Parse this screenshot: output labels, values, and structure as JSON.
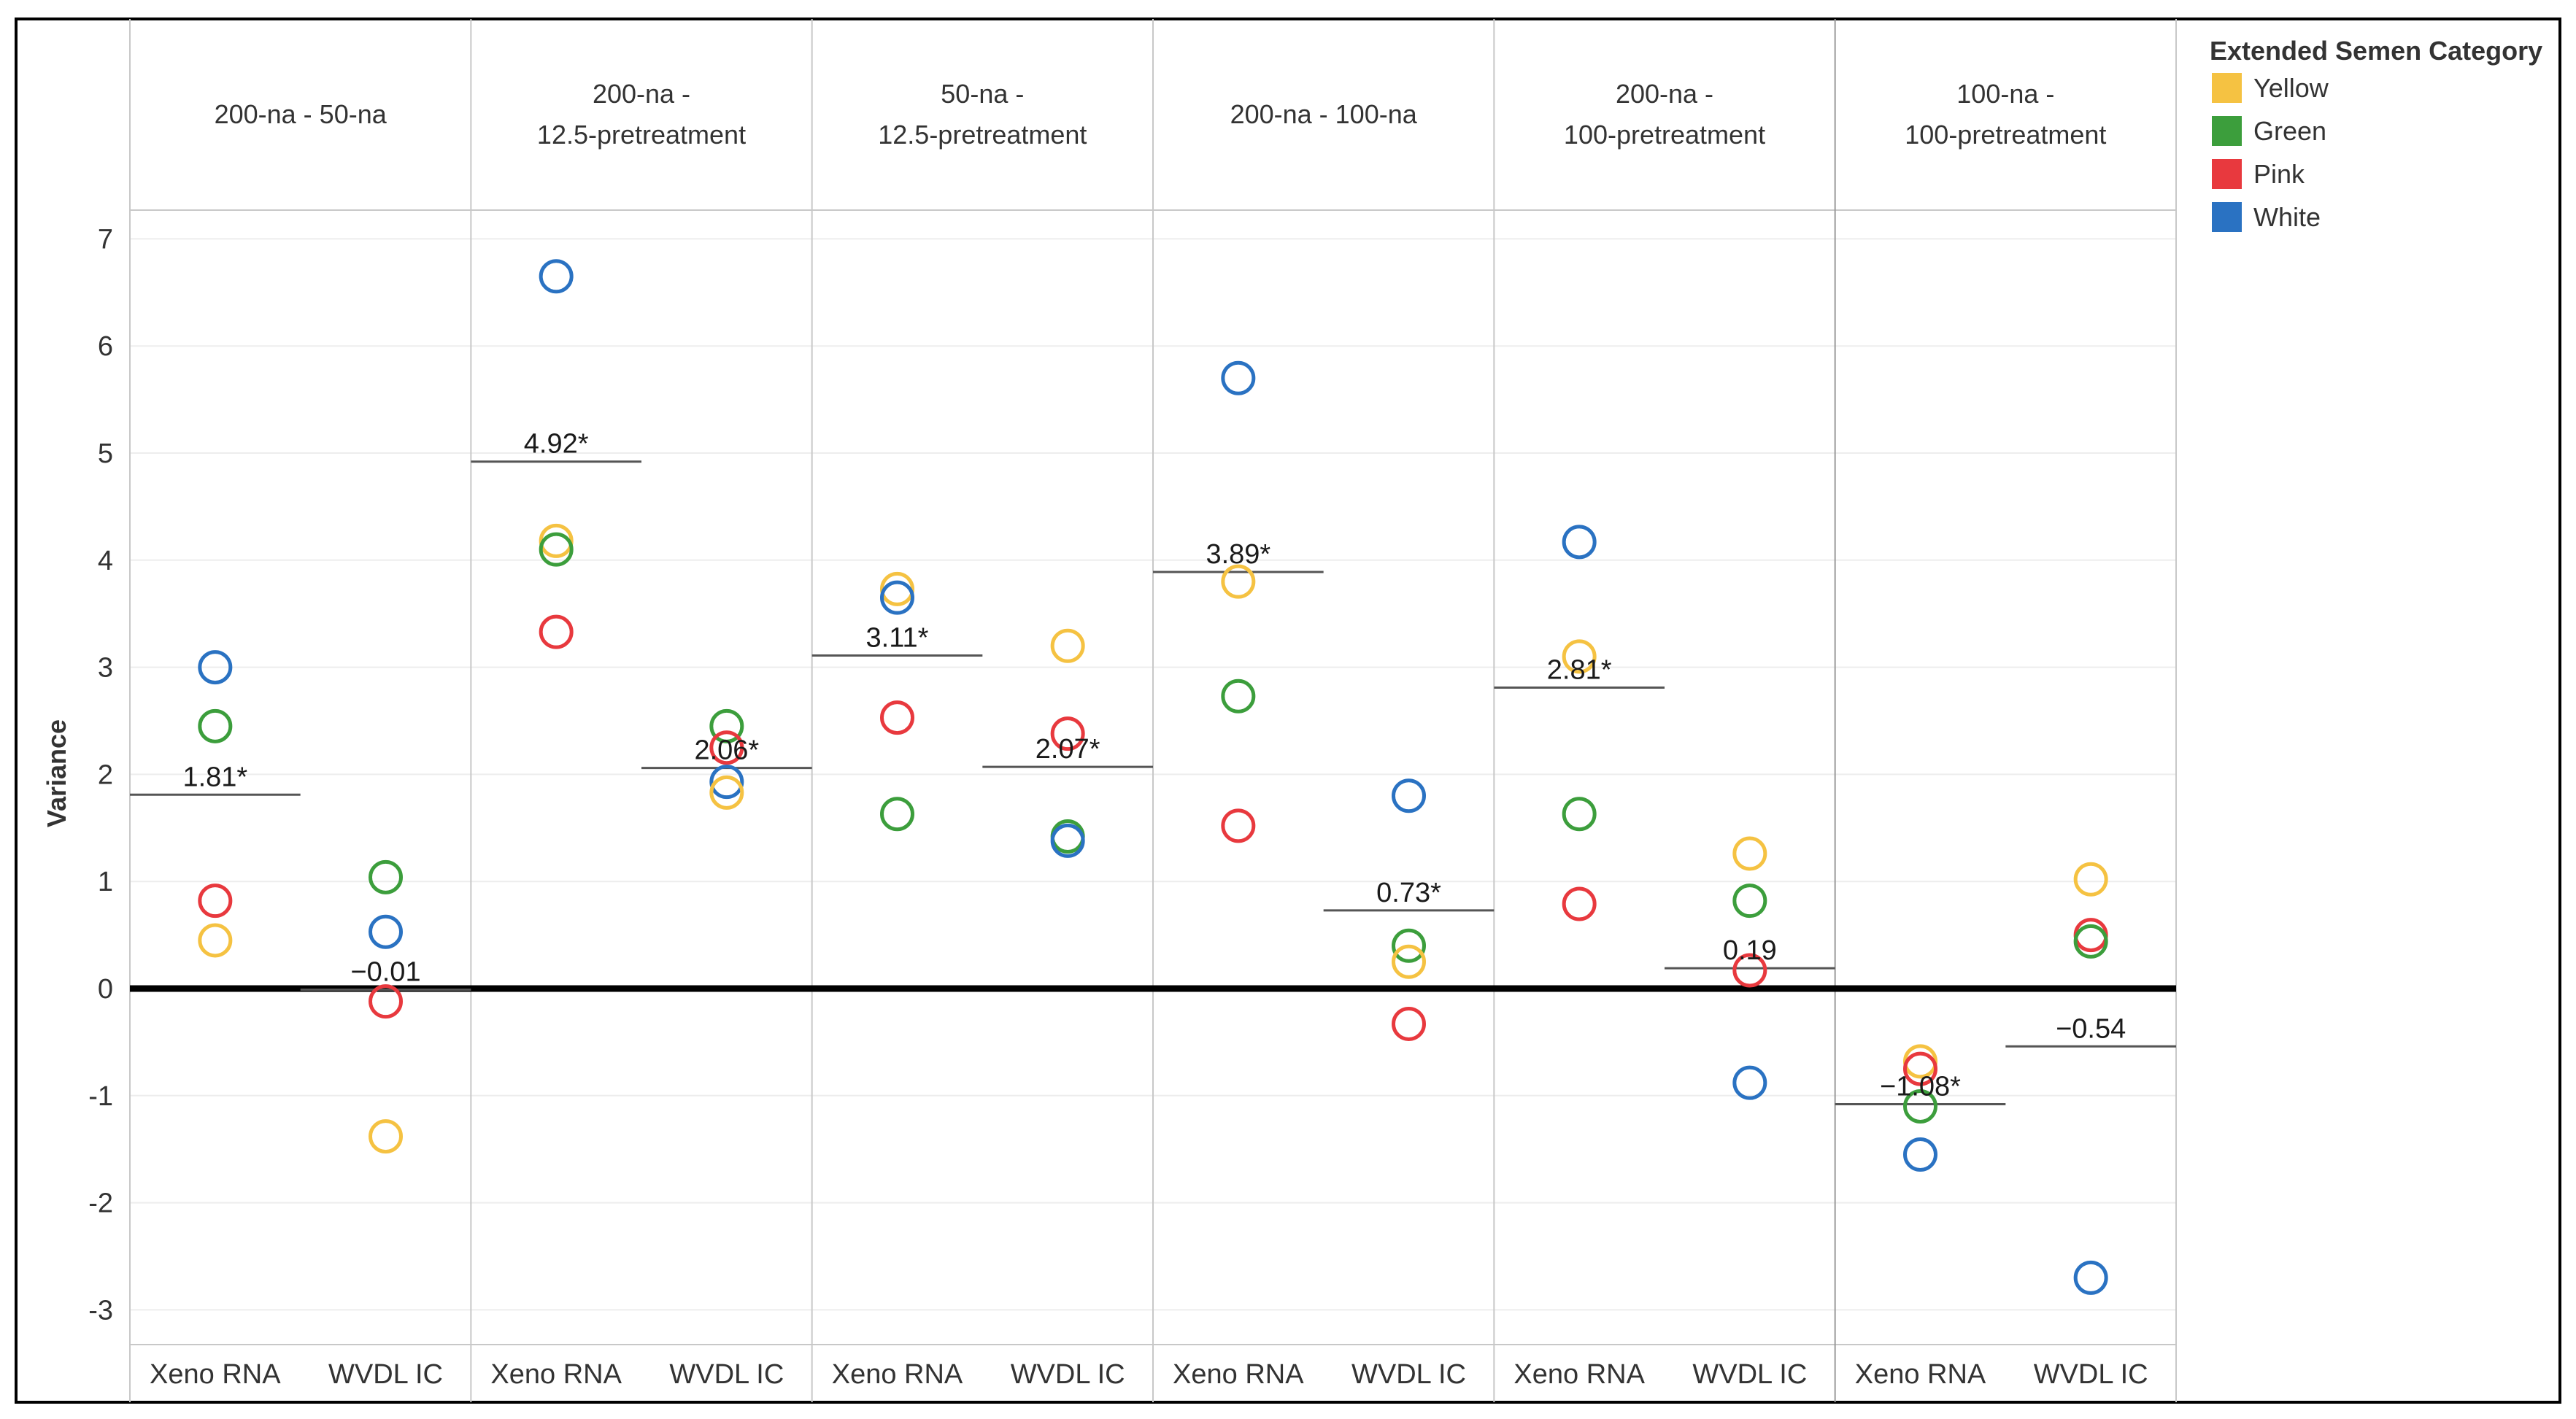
{
  "chart_data": {
    "type": "scatter",
    "ylabel": "Variance",
    "ylim": [
      -3.3,
      7.3
    ],
    "yticks": [
      7,
      6,
      5,
      4,
      3,
      2,
      1,
      0,
      -1,
      -2,
      -3
    ],
    "ytick_labels": [
      "7",
      "6",
      "5",
      "4",
      "3",
      "2",
      "1",
      "0",
      "-1",
      "-2",
      "-3"
    ],
    "legend": {
      "title": "Extended Semen Category",
      "position": "top-right",
      "entries": [
        {
          "name": "Yellow",
          "color": "#f5c242"
        },
        {
          "name": "Green",
          "color": "#3c9e3c"
        },
        {
          "name": "Pink",
          "color": "#e8393e"
        },
        {
          "name": "White",
          "color": "#2a72c2"
        }
      ]
    },
    "categories": [
      "Xeno RNA",
      "WVDL IC"
    ],
    "panels": [
      {
        "title_lines": [
          "200-na - 50-na"
        ],
        "groups": [
          {
            "label": "Xeno RNA",
            "reference": 1.81,
            "reference_label": "1.81*",
            "points": {
              "White": 3.0,
              "Green": 2.45,
              "Pink": 0.82,
              "Yellow": 0.45
            }
          },
          {
            "label": "WVDL IC",
            "reference": -0.01,
            "reference_label": "−0.01",
            "points": {
              "Green": 1.04,
              "White": 0.53,
              "Pink": -0.12,
              "Yellow": -1.38
            }
          }
        ]
      },
      {
        "title_lines": [
          "200-na -",
          "12.5-pretreatment"
        ],
        "groups": [
          {
            "label": "Xeno RNA",
            "reference": 4.92,
            "reference_label": "4.92*",
            "points": {
              "White": 6.65,
              "Yellow": 4.18,
              "Green": 4.1,
              "Pink": 3.33
            }
          },
          {
            "label": "WVDL IC",
            "reference": 2.06,
            "reference_label": "2.06*",
            "points": {
              "Green": 2.45,
              "Pink": 2.25,
              "White": 1.93,
              "Yellow": 1.83
            }
          }
        ]
      },
      {
        "title_lines": [
          "50-na -",
          "12.5-pretreatment"
        ],
        "groups": [
          {
            "label": "Xeno RNA",
            "reference": 3.11,
            "reference_label": "3.11*",
            "points": {
              "Yellow": 3.73,
              "White": 3.65,
              "Pink": 2.53,
              "Green": 1.63
            }
          },
          {
            "label": "WVDL IC",
            "reference": 2.07,
            "reference_label": "2.07*",
            "points": {
              "Yellow": 3.2,
              "Pink": 2.38,
              "Green": 1.42,
              "White": 1.38
            }
          }
        ]
      },
      {
        "title_lines": [
          "200-na - 100-na"
        ],
        "groups": [
          {
            "label": "Xeno RNA",
            "reference": 3.89,
            "reference_label": "3.89*",
            "points": {
              "White": 5.7,
              "Yellow": 3.8,
              "Green": 2.73,
              "Pink": 1.52
            }
          },
          {
            "label": "WVDL IC",
            "reference": 0.73,
            "reference_label": "0.73*",
            "points": {
              "White": 1.8,
              "Green": 0.4,
              "Yellow": 0.25,
              "Pink": -0.33
            }
          }
        ]
      },
      {
        "title_lines": [
          "200-na -",
          "100-pretreatment"
        ],
        "groups": [
          {
            "label": "Xeno RNA",
            "reference": 2.81,
            "reference_label": "2.81*",
            "points": {
              "White": 4.17,
              "Yellow": 3.1,
              "Green": 1.63,
              "Pink": 0.79
            }
          },
          {
            "label": "WVDL IC",
            "reference": 0.19,
            "reference_label": "0.19",
            "points": {
              "Yellow": 1.26,
              "Green": 0.82,
              "Pink": 0.17,
              "White": -0.88
            }
          }
        ]
      },
      {
        "title_lines": [
          "100-na -",
          "100-pretreatment"
        ],
        "groups": [
          {
            "label": "Xeno RNA",
            "reference": -1.08,
            "reference_label": "−1.08*",
            "points": {
              "Yellow": -0.68,
              "Pink": -0.75,
              "Green": -1.1,
              "White": -1.55
            }
          },
          {
            "label": "WVDL IC",
            "reference": -0.54,
            "reference_label": "−0.54",
            "points": {
              "Yellow": 1.02,
              "Pink": 0.5,
              "Green": 0.44,
              "White": -2.7
            }
          }
        ]
      }
    ]
  }
}
